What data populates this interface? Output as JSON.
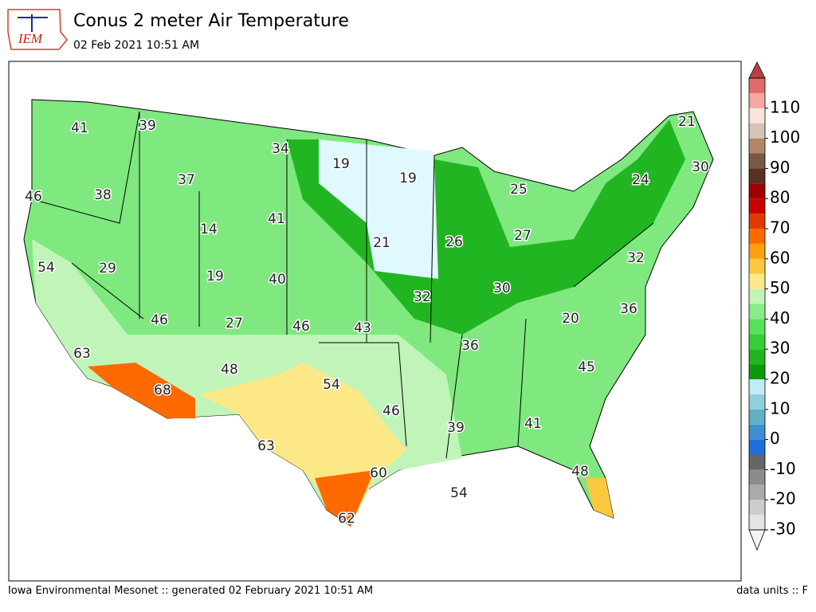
{
  "header": {
    "logo": "IEM",
    "title": "Conus 2 meter Air Temperature",
    "subtitle": "02 Feb 2021 10:51 AM"
  },
  "map": {
    "labels": [
      41,
      39,
      34,
      19,
      19,
      21,
      30,
      24,
      25,
      46,
      38,
      37,
      41,
      14,
      21,
      26,
      27,
      54,
      29,
      19,
      40,
      32,
      30,
      32,
      36,
      20,
      46,
      27,
      46,
      43,
      36,
      63,
      45,
      48,
      54,
      68,
      46,
      39,
      41,
      63,
      60,
      48,
      54,
      62
    ]
  },
  "colorbar": {
    "lim": [
      -30,
      120
    ],
    "ticks": [
      -30,
      -20,
      -10,
      0,
      10,
      20,
      30,
      40,
      50,
      60,
      70,
      80,
      90,
      100,
      110
    ],
    "colors": [
      "#e4e4e4",
      "#cccccc",
      "#aaaaaa",
      "#8c8c8c",
      "#666666",
      "#1e6fd9",
      "#3f8fd0",
      "#5fb0c8",
      "#90d0dc",
      "#c0ecf4",
      "#0c9a0c",
      "#22b522",
      "#38cc38",
      "#58e058",
      "#88ec88",
      "#c0f4b8",
      "#fde888",
      "#fcc840",
      "#ffa010",
      "#ff6a00",
      "#e03a00",
      "#c80000",
      "#a00000",
      "#5a3020",
      "#7a5848",
      "#b08868",
      "#d8c4b4",
      "#f8e4d8",
      "#f4a8a0",
      "#e06a6a"
    ]
  },
  "footer": {
    "left": "Iowa Environmental Mesonet :: generated 02 February 2021 10:51 AM",
    "right": "data units :: F"
  }
}
